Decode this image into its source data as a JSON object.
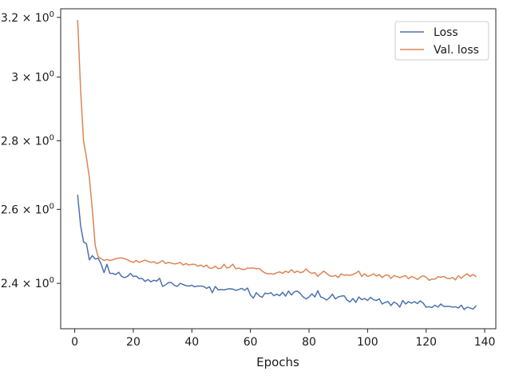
{
  "chart_data": {
    "type": "line",
    "title": "",
    "xlabel": "Epochs",
    "ylabel": "",
    "yscale": "log",
    "xlim": [
      -4.8,
      143.8
    ],
    "ylim": [
      2.285,
      3.23
    ],
    "grid": false,
    "legend_position": "top-right",
    "x_ticks": [
      0,
      20,
      40,
      60,
      80,
      100,
      120,
      140
    ],
    "x_tick_labels": [
      "0",
      "20",
      "40",
      "60",
      "80",
      "100",
      "120",
      "140"
    ],
    "y_ticks": [
      2.4,
      2.6,
      2.8,
      3.0,
      3.2
    ],
    "y_tick_labels": [
      {
        "base": "2.4",
        "sep": " × ",
        "mant": "10",
        "exp": "0"
      },
      {
        "base": "2.6",
        "sep": " × ",
        "mant": "10",
        "exp": "0"
      },
      {
        "base": "2.8",
        "sep": " × ",
        "mant": "10",
        "exp": "0"
      },
      {
        "base": "3",
        "sep": " × ",
        "mant": "10",
        "exp": "0"
      },
      {
        "base": "3.2",
        "sep": " × ",
        "mant": "10",
        "exp": "0"
      }
    ],
    "series": [
      {
        "name": "Loss",
        "color": "#4c72b0",
        "x": [
          1,
          2,
          3,
          4,
          5,
          6,
          7,
          8,
          9,
          10,
          11,
          12,
          13,
          14,
          15,
          16,
          17,
          18,
          19,
          20,
          21,
          22,
          23,
          24,
          25,
          26,
          27,
          28,
          29,
          30,
          31,
          32,
          33,
          34,
          35,
          36,
          37,
          38,
          39,
          40,
          41,
          42,
          43,
          44,
          45,
          46,
          47,
          48,
          49,
          50,
          51,
          52,
          53,
          54,
          55,
          56,
          57,
          58,
          59,
          60,
          61,
          62,
          63,
          64,
          65,
          66,
          67,
          68,
          69,
          70,
          71,
          72,
          73,
          74,
          75,
          76,
          77,
          78,
          79,
          80,
          81,
          82,
          83,
          84,
          85,
          86,
          87,
          88,
          89,
          90,
          91,
          92,
          93,
          94,
          95,
          96,
          97,
          98,
          99,
          100,
          101,
          102,
          103,
          104,
          105,
          106,
          107,
          108,
          109,
          110,
          111,
          112,
          113,
          114,
          115,
          116,
          117,
          118,
          119,
          120,
          121,
          122,
          123,
          124,
          125,
          126,
          127,
          128,
          129,
          130,
          131,
          132,
          133,
          134,
          135,
          136,
          137
        ],
        "y": [
          2.64,
          2.555,
          2.51,
          2.505,
          2.462,
          2.473,
          2.464,
          2.466,
          2.451,
          2.428,
          2.45,
          2.426,
          2.426,
          2.423,
          2.429,
          2.418,
          2.415,
          2.418,
          2.426,
          2.418,
          2.419,
          2.412,
          2.413,
          2.405,
          2.41,
          2.404,
          2.408,
          2.406,
          2.413,
          2.392,
          2.396,
          2.402,
          2.402,
          2.395,
          2.392,
          2.4,
          2.397,
          2.394,
          2.393,
          2.395,
          2.391,
          2.393,
          2.393,
          2.392,
          2.387,
          2.391,
          2.376,
          2.392,
          2.383,
          2.384,
          2.383,
          2.385,
          2.386,
          2.385,
          2.382,
          2.384,
          2.387,
          2.382,
          2.388,
          2.37,
          2.362,
          2.376,
          2.368,
          2.364,
          2.375,
          2.373,
          2.376,
          2.368,
          2.372,
          2.368,
          2.377,
          2.367,
          2.38,
          2.37,
          2.378,
          2.38,
          2.374,
          2.365,
          2.36,
          2.365,
          2.373,
          2.365,
          2.381,
          2.365,
          2.362,
          2.357,
          2.363,
          2.372,
          2.36,
          2.365,
          2.367,
          2.368,
          2.357,
          2.352,
          2.361,
          2.351,
          2.365,
          2.358,
          2.361,
          2.356,
          2.364,
          2.358,
          2.356,
          2.36,
          2.347,
          2.351,
          2.353,
          2.343,
          2.352,
          2.348,
          2.339,
          2.356,
          2.347,
          2.353,
          2.349,
          2.353,
          2.348,
          2.355,
          2.349,
          2.339,
          2.34,
          2.338,
          2.344,
          2.339,
          2.347,
          2.341,
          2.341,
          2.341,
          2.339,
          2.34,
          2.337,
          2.344,
          2.333,
          2.339,
          2.337,
          2.334,
          2.342
        ]
      },
      {
        "name": "Val. loss",
        "color": "#dd8452",
        "x": [
          1,
          2,
          3,
          4,
          5,
          6,
          7,
          8,
          9,
          10,
          11,
          12,
          13,
          14,
          15,
          16,
          17,
          18,
          19,
          20,
          21,
          22,
          23,
          24,
          25,
          26,
          27,
          28,
          29,
          30,
          31,
          32,
          33,
          34,
          35,
          36,
          37,
          38,
          39,
          40,
          41,
          42,
          43,
          44,
          45,
          46,
          47,
          48,
          49,
          50,
          51,
          52,
          53,
          54,
          55,
          56,
          57,
          58,
          59,
          60,
          61,
          62,
          63,
          64,
          65,
          66,
          67,
          68,
          69,
          70,
          71,
          72,
          73,
          74,
          75,
          76,
          77,
          78,
          79,
          80,
          81,
          82,
          83,
          84,
          85,
          86,
          87,
          88,
          89,
          90,
          91,
          92,
          93,
          94,
          95,
          96,
          97,
          98,
          99,
          100,
          101,
          102,
          103,
          104,
          105,
          106,
          107,
          108,
          109,
          110,
          111,
          112,
          113,
          114,
          115,
          116,
          117,
          118,
          119,
          120,
          121,
          122,
          123,
          124,
          125,
          126,
          127,
          128,
          129,
          130,
          131,
          132,
          133,
          134,
          135,
          136,
          137
        ],
        "y": [
          3.19,
          2.96,
          2.8,
          2.75,
          2.69,
          2.6,
          2.5,
          2.47,
          2.465,
          2.46,
          2.463,
          2.46,
          2.462,
          2.465,
          2.466,
          2.467,
          2.465,
          2.462,
          2.458,
          2.455,
          2.46,
          2.455,
          2.458,
          2.461,
          2.458,
          2.455,
          2.457,
          2.452,
          2.455,
          2.46,
          2.452,
          2.455,
          2.453,
          2.451,
          2.452,
          2.455,
          2.448,
          2.452,
          2.448,
          2.45,
          2.45,
          2.445,
          2.448,
          2.443,
          2.448,
          2.44,
          2.44,
          2.445,
          2.438,
          2.44,
          2.45,
          2.44,
          2.443,
          2.45,
          2.438,
          2.44,
          2.437,
          2.436,
          2.44,
          2.44,
          2.44,
          2.438,
          2.439,
          2.432,
          2.427,
          2.425,
          2.425,
          2.424,
          2.428,
          2.43,
          2.426,
          2.432,
          2.428,
          2.436,
          2.428,
          2.432,
          2.428,
          2.43,
          2.438,
          2.43,
          2.426,
          2.428,
          2.418,
          2.425,
          2.432,
          2.426,
          2.42,
          2.418,
          2.421,
          2.415,
          2.425,
          2.421,
          2.422,
          2.421,
          2.423,
          2.427,
          2.432,
          2.418,
          2.425,
          2.418,
          2.421,
          2.425,
          2.419,
          2.423,
          2.415,
          2.421,
          2.422,
          2.413,
          2.42,
          2.418,
          2.415,
          2.418,
          2.42,
          2.412,
          2.418,
          2.415,
          2.41,
          2.416,
          2.42,
          2.416,
          2.408,
          2.411,
          2.411,
          2.417,
          2.416,
          2.418,
          2.414,
          2.412,
          2.415,
          2.409,
          2.42,
          2.413,
          2.42,
          2.425,
          2.418,
          2.423,
          2.418
        ]
      }
    ]
  }
}
